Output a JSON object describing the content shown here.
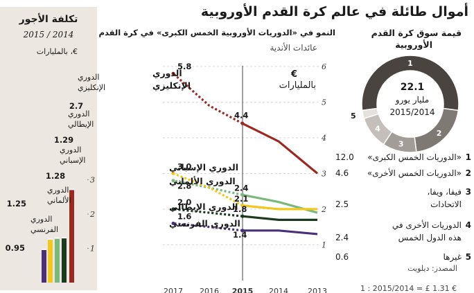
{
  "title": "أموال طائلة في عالم كرة القدم الأوروبية",
  "wages": {
    "title": "تكلفة الأجور",
    "period": "2015 / 2014",
    "unit": "€، بالمليارات",
    "leagues": [
      {
        "name_l1": "الدوري",
        "name_l2": "الإنكليزي",
        "value": 2.7,
        "value_label": "2.7",
        "color": "#9a2a20"
      },
      {
        "name_l1": "الدوري",
        "name_l2": "الإيطالي",
        "value": 1.29,
        "value_label": "1.29",
        "color": "#1b3a1e"
      },
      {
        "name_l1": "الدوري",
        "name_l2": "الإسباني",
        "value": 1.28,
        "value_label": "1.28",
        "color": "#7ab87c"
      },
      {
        "name_l1": "الدوري",
        "name_l2": "الألماني",
        "value": 1.25,
        "value_label": "1.25",
        "color": "#f2c81e"
      },
      {
        "name_l1": "الدوري",
        "name_l2": "الفرنسي",
        "value": 0.95,
        "value_label": "0.95",
        "color": "#4a2f7a"
      }
    ],
    "ticks": [
      "3",
      "2",
      "1"
    ]
  },
  "growth": {
    "title": "النمو في «الدوريات الأوروبية الخمس الكبرى» في كرة القدم",
    "subtitle": "عائدات الأندية",
    "unit_l1": "€",
    "unit_l2": "بالمليارات"
  },
  "market": {
    "title_l1": "قيمة سوق كرة القدم",
    "title_l2": "الأوروبية",
    "center_value": "22.1",
    "center_unit": "مليار يورو",
    "center_period": "2015/2014",
    "segments": [
      {
        "num": "1",
        "value": 12.0,
        "color": "#4a4440"
      },
      {
        "num": "2",
        "value": 4.6,
        "color": "#7f7974"
      },
      {
        "num": "3",
        "value": 2.5,
        "color": "#a39d98"
      },
      {
        "num": "4",
        "value": 2.4,
        "color": "#c4bfba"
      },
      {
        "num": "5",
        "value": 0.6,
        "color": "#e5e1dd"
      }
    ],
    "legend": [
      {
        "num": "1",
        "label_l1": "«الدوريات الخمس الكبرى»",
        "label_l2": "",
        "value": "12.0"
      },
      {
        "num": "2",
        "label_l1": "«الدوريات الخمس الأخرى»",
        "label_l2": "",
        "value": "4.6"
      },
      {
        "num": "3",
        "label_l1": "فيفا، ويفا،",
        "label_l2": "الاتحادات",
        "value": "2.5"
      },
      {
        "num": "4",
        "label_l1": "الدوريات الأخرى في",
        "label_l2": "هذه الدول الخمس",
        "value": "2.4"
      },
      {
        "num": "5",
        "label_l1": "غيرها",
        "label_l2": "",
        "value": "0.6"
      }
    ],
    "source": "المصدر: ديلويت",
    "footnote": "1 : 2015/2014 = £ 1.31 €"
  },
  "chart_data": {
    "type": "line",
    "title": "النمو في «الدوريات الأوروبية الخمس الكبرى» في كرة القدم",
    "subtitle": "عائدات الأندية",
    "ylabel": "€ بالمليارات",
    "x": [
      "2013",
      "2014",
      "2015",
      "2016",
      "2017"
    ],
    "x_tick_labels": [
      "2013",
      "2014",
      "2015",
      "2016",
      "2017"
    ],
    "y_ticks": [
      "1",
      "2",
      "3",
      "4",
      "5",
      "6"
    ],
    "ylim": [
      0.6,
      6
    ],
    "forecast_from": "2015",
    "grid": true,
    "series": [
      {
        "name": "الدوري الإنكليزي",
        "color": "#9a2a20",
        "values": [
          3.0,
          3.9,
          4.4,
          4.9,
          5.8
        ],
        "labels": {
          "2015": "4.4",
          "2017": "5.8"
        }
      },
      {
        "name": "الدوري الإسباني",
        "color": "#7ab87c",
        "values": [
          1.9,
          2.2,
          2.4,
          2.6,
          2.8
        ],
        "labels": {
          "2015": "2.4",
          "2017": "2.8"
        }
      },
      {
        "name": "الدوري الألماني",
        "color": "#f2c81e",
        "values": [
          2.0,
          2.0,
          2.1,
          2.6,
          3.0
        ],
        "labels": {
          "2015": "2.1",
          "2017": "3.0"
        }
      },
      {
        "name": "الدوري الإيطالي",
        "color": "#1b3a1e",
        "values": [
          1.7,
          1.7,
          1.8,
          1.9,
          2.0
        ],
        "labels": {
          "2015": "1.8",
          "2017": "2.0"
        }
      },
      {
        "name": "الدوري الفرنسي",
        "color": "#4a2f7a",
        "values": [
          1.3,
          1.4,
          1.4,
          1.5,
          1.6
        ],
        "labels": {
          "2015": "1.4",
          "2017": "1.6"
        }
      }
    ]
  }
}
